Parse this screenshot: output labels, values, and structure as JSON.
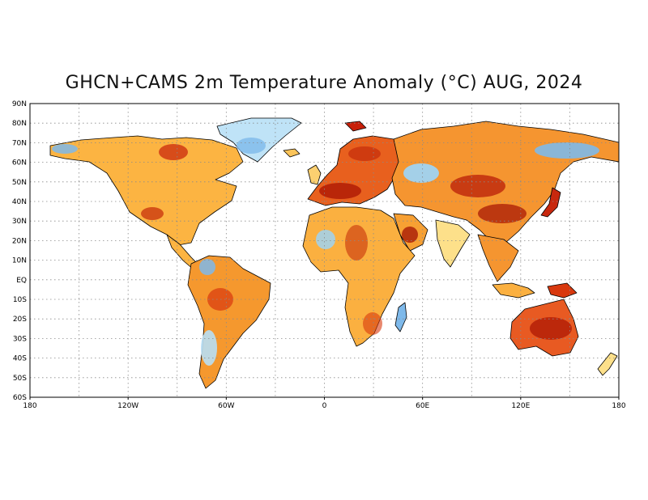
{
  "title": "GHCN+CAMS 2m Temperature Anomaly (°C) AUG, 2024",
  "map": {
    "lon_ticks": [
      "180",
      "120W",
      "60W",
      "0",
      "60E",
      "120E",
      "180"
    ],
    "lat_ticks": [
      "90N",
      "80N",
      "70N",
      "60N",
      "50N",
      "40N",
      "30N",
      "20N",
      "10N",
      "EQ",
      "10S",
      "20S",
      "30S",
      "40S",
      "50S",
      "60S"
    ],
    "projection": "equirectangular",
    "lon_range": [
      -180,
      180
    ],
    "lat_range": [
      -60,
      90
    ],
    "grid": "dotted",
    "colors": {
      "strong_warm": "#b01c06",
      "warm": "#e8501c",
      "mild_warm": "#f5902e",
      "slight_warm": "#fcc04a",
      "near_zero_warm": "#fde88c",
      "near_zero_cool": "#d4eefa",
      "slight_cool": "#9fd3f2",
      "cool": "#5ea9e6"
    },
    "regions": [
      {
        "name": "north-america",
        "color": "#fcb442"
      },
      {
        "name": "greenland",
        "color": "#bfe3f7"
      },
      {
        "name": "south-america",
        "color": "#f5982e"
      },
      {
        "name": "africa",
        "color": "#fbb040"
      },
      {
        "name": "europe",
        "color": "#e8601e"
      },
      {
        "name": "asia",
        "color": "#f59530"
      },
      {
        "name": "arabia",
        "color": "#f7a033"
      },
      {
        "name": "india",
        "color": "#fde08a"
      },
      {
        "name": "australia",
        "color": "#e85a22"
      },
      {
        "name": "madagascar",
        "color": "#7eb9ea"
      },
      {
        "name": "new-zealand",
        "color": "#fde08a"
      },
      {
        "name": "japan",
        "color": "#c8280e"
      },
      {
        "name": "uk",
        "color": "#fcd070"
      },
      {
        "name": "svalbard",
        "color": "#c8200a"
      },
      {
        "name": "iceland",
        "color": "#fbc45a"
      },
      {
        "name": "indonesia",
        "color": "#fbb040"
      },
      {
        "name": "new-guinea",
        "color": "#d8380e"
      }
    ]
  }
}
